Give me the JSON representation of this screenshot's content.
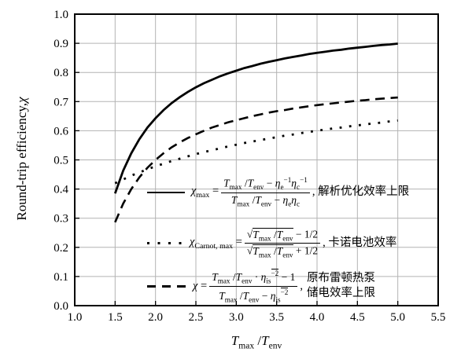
{
  "figure": {
    "background": "#ffffff",
    "curve_color": "#000000",
    "grid_color": "#b3b3b3",
    "axis_color": "#000000"
  },
  "axis_labels": {
    "x": "i{T}_{max} /i{T}_{env}",
    "y_text": "Round-trip efficiency,",
    "y_chi": "χ"
  },
  "legend": {
    "entries": [
      {
        "marker": "solid",
        "lhs": "i{χ}_{max} = ",
        "num": "i{T}_{max} /i{T}_{env} − i{η}_{e}^{−1}i{η}_{c}^{−1}",
        "den": "i{T}_{max} /i{T}_{env} − i{η}_{e}i{η}_{c}",
        "suffix": ", 解析优化效率上限"
      },
      {
        "marker": "dotted",
        "lhs": "i{χ}_{Carnot, max} = ",
        "num": "√{i{T}_{max} /i{T}_{env}} − 1/2",
        "den": "√{i{T}_{max} /i{T}_{env}} + 1/2",
        "suffix": ", 卡诺电池效率"
      },
      {
        "marker": "dashed",
        "lhs": "i{χ} = ",
        "num": "i{T}_{max} /i{T}_{env} · i{η}_{is}^{‾{−2}} − 1",
        "den": "i{T}_{max} /i{T}_{env} − i{η}_{is}^{‾{−2}}",
        "comma": ",",
        "suffix_lines": [
          "原布雷顿热泵",
          "储电效率上限"
        ]
      }
    ]
  },
  "chart_data": {
    "type": "line",
    "title": "",
    "xlabel": "T_max/T_env",
    "ylabel": "Round-trip efficiency, χ",
    "xlim": [
      1.0,
      5.5
    ],
    "ylim": [
      0.0,
      1.0
    ],
    "grid": true,
    "grid_color": "#b3b3b3",
    "legend_position": "inside lower right of upper curves",
    "x_ticks": [
      1.0,
      1.5,
      2.0,
      2.5,
      3.0,
      3.5,
      4.0,
      4.5,
      5.0,
      5.5
    ],
    "x_tick_labels": [
      "1.0",
      "1.5",
      "2.0",
      "2.5",
      "3.0",
      "3.5",
      "4.0",
      "4.5",
      "5.0",
      "5.5"
    ],
    "y_ticks": [
      0.0,
      0.1,
      0.2,
      0.3,
      0.4,
      0.5,
      0.6,
      0.7,
      0.8,
      0.9,
      1.0
    ],
    "y_tick_labels": [
      "0.0",
      "0.1",
      "0.2",
      "0.3",
      "0.4",
      "0.5",
      "0.6",
      "0.7",
      "0.8",
      "0.9",
      "1.0"
    ],
    "x": [
      1.5,
      1.6,
      1.7,
      1.8,
      1.9,
      2.0,
      2.1,
      2.2,
      2.3,
      2.4,
      2.5,
      2.6,
      2.7,
      2.8,
      2.9,
      3.0,
      3.1,
      3.2,
      3.3,
      3.4,
      3.5,
      3.6,
      3.7,
      3.8,
      3.9,
      4.0,
      4.1,
      4.2,
      4.3,
      4.4,
      4.5,
      4.6,
      4.7,
      4.8,
      4.9,
      5.0
    ],
    "series": [
      {
        "name": "χ_max = (T_max/T_env − η_e⁻¹η_c⁻¹)/(T_max/T_env − η_e η_c), 解析优化效率上限",
        "style": "solid",
        "values": [
          0.385,
          0.463,
          0.523,
          0.571,
          0.611,
          0.643,
          0.671,
          0.695,
          0.715,
          0.733,
          0.749,
          0.763,
          0.775,
          0.787,
          0.797,
          0.806,
          0.815,
          0.822,
          0.83,
          0.836,
          0.842,
          0.848,
          0.853,
          0.858,
          0.863,
          0.867,
          0.871,
          0.875,
          0.878,
          0.882,
          0.885,
          0.888,
          0.891,
          0.894,
          0.896,
          0.899
        ]
      },
      {
        "name": "χ_Carnot,max = (√(T_max/T_env) − 1/2)/(√(T_max/T_env) + 1/2), 卡诺电池效率",
        "style": "dotted",
        "values": [
          0.42,
          0.433,
          0.446,
          0.457,
          0.468,
          0.478,
          0.487,
          0.496,
          0.504,
          0.512,
          0.52,
          0.527,
          0.533,
          0.54,
          0.546,
          0.552,
          0.558,
          0.563,
          0.568,
          0.573,
          0.578,
          0.583,
          0.587,
          0.592,
          0.596,
          0.6,
          0.604,
          0.608,
          0.611,
          0.615,
          0.618,
          0.622,
          0.625,
          0.628,
          0.632,
          0.635
        ]
      },
      {
        "name": "χ = (T_max/T_env·η̄_is⁻² − 1)/(T_max/T_env − η̄_is⁻²), 原布雷顿热泵储电效率上限",
        "style": "dashed",
        "values": [
          0.286,
          0.35,
          0.4,
          0.44,
          0.473,
          0.5,
          0.523,
          0.543,
          0.56,
          0.575,
          0.588,
          0.6,
          0.611,
          0.62,
          0.629,
          0.636,
          0.643,
          0.65,
          0.656,
          0.662,
          0.667,
          0.671,
          0.676,
          0.68,
          0.684,
          0.688,
          0.691,
          0.694,
          0.697,
          0.7,
          0.703,
          0.705,
          0.708,
          0.71,
          0.712,
          0.714
        ]
      }
    ]
  }
}
